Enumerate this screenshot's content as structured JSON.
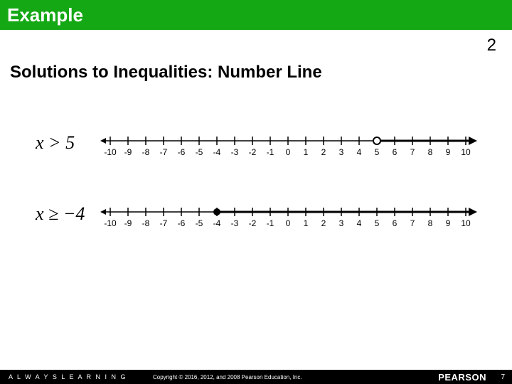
{
  "header": {
    "title": "Example",
    "topRightNumber": "2"
  },
  "subtitle": "Solutions to Inequalities: Number Line",
  "inequalities": [
    {
      "expr_html": "<i>x</i> > 5"
    },
    {
      "expr_html": "<i>x</i> ≥ −4"
    }
  ],
  "numberLines": [
    {
      "min": -10,
      "max": 10,
      "tick_step": 1,
      "solution_start": 5,
      "direction": "right",
      "endpoint": "open",
      "tick_fontsize": 12,
      "line_color": "#000000",
      "highlight_width": 3
    },
    {
      "min": -10,
      "max": 10,
      "tick_step": 1,
      "solution_start": -4,
      "direction": "right",
      "endpoint": "closed",
      "tick_fontsize": 12,
      "line_color": "#000000",
      "highlight_width": 3
    }
  ],
  "footer": {
    "left": "A L W A Y S   L E A R N I N G",
    "copyright": "Copyright © 2016, 2012, and 2008 Pearson Education, Inc.",
    "brand": "PEARSON",
    "page": "7"
  },
  "colors": {
    "header_bg": "#15a815",
    "slide_bg": "#ffffff",
    "footer_bg": "#000000",
    "text": "#000000"
  }
}
